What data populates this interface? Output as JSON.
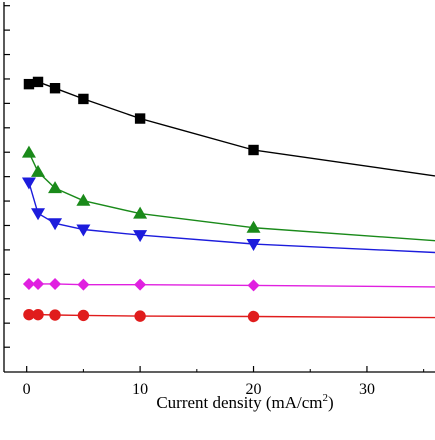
{
  "chart_data": {
    "type": "line",
    "title": "",
    "xlabel": "Current density (mA/cm",
    "xlabel_sup": "2",
    "xlabel_suffix": ")",
    "ylabel": "",
    "xlim": [
      -2,
      36
    ],
    "ylim": [
      0,
      1
    ],
    "x_ticks": [
      0,
      10,
      20,
      30
    ],
    "x_tick_labels": [
      "0",
      "10",
      "20",
      "30"
    ],
    "y_ticks": [
      0.067,
      0.132,
      0.198,
      0.264,
      0.33,
      0.396,
      0.462,
      0.528,
      0.594,
      0.66,
      0.726,
      0.792,
      0.858,
      0.924,
      0.99
    ],
    "grid": false,
    "legend": "none",
    "series": [
      {
        "marker": "square",
        "color": "#000000",
        "x": [
          0.2,
          1,
          2.5,
          5,
          10,
          20
        ],
        "y": [
          0.778,
          0.784,
          0.767,
          0.738,
          0.685,
          0.6
        ],
        "fit_x": [
          0.2,
          1,
          2.5,
          5,
          10,
          20,
          36
        ],
        "fit_y": [
          0.778,
          0.784,
          0.767,
          0.738,
          0.685,
          0.6,
          0.53
        ]
      },
      {
        "marker": "triangle-up",
        "color": "#1a8a1a",
        "x": [
          0.2,
          1,
          2.5,
          5,
          10,
          20
        ],
        "y": [
          0.593,
          0.541,
          0.497,
          0.463,
          0.428,
          0.39
        ],
        "fit_x": [
          0.2,
          1,
          2.5,
          5,
          10,
          20,
          36
        ],
        "fit_y": [
          0.593,
          0.541,
          0.497,
          0.463,
          0.428,
          0.39,
          0.355
        ]
      },
      {
        "marker": "triangle-down",
        "color": "#1c1cdc",
        "x": [
          0.2,
          1,
          2.5,
          5,
          10,
          20
        ],
        "y": [
          0.512,
          0.429,
          0.402,
          0.385,
          0.37,
          0.346
        ],
        "fit_x": [
          0.2,
          1,
          2.5,
          5,
          10,
          20,
          36
        ],
        "fit_y": [
          0.512,
          0.429,
          0.402,
          0.385,
          0.37,
          0.346,
          0.323
        ]
      },
      {
        "marker": "diamond",
        "color": "#e020e0",
        "x": [
          0.2,
          1,
          2.5,
          5,
          10,
          20
        ],
        "y": [
          0.238,
          0.238,
          0.238,
          0.236,
          0.236,
          0.234
        ],
        "fit_x": [
          0.2,
          1,
          2.5,
          5,
          10,
          20,
          36
        ],
        "fit_y": [
          0.238,
          0.238,
          0.238,
          0.236,
          0.236,
          0.234,
          0.23
        ]
      },
      {
        "marker": "circle",
        "color": "#e01c1c",
        "x": [
          0.2,
          1,
          2.5,
          5,
          10,
          20
        ],
        "y": [
          0.155,
          0.155,
          0.154,
          0.153,
          0.151,
          0.15
        ],
        "fit_x": [
          0.2,
          1,
          2.5,
          5,
          10,
          20,
          36
        ],
        "fit_y": [
          0.155,
          0.155,
          0.154,
          0.153,
          0.151,
          0.15,
          0.147
        ]
      }
    ]
  }
}
